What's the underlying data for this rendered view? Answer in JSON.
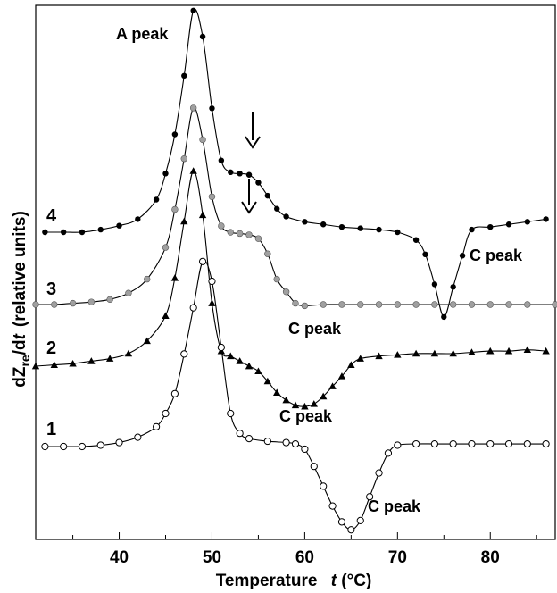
{
  "chart_data": {
    "type": "line",
    "title": "",
    "xlabel": "Temperature",
    "xlabel_var": "t",
    "xlabel_unit": "(°C)",
    "ylabel": "dZ",
    "ylabel_sub": "re",
    "ylabel_mid": "/d",
    "ylabel_var": "t",
    "ylabel_units": "(relative units)",
    "xlim": [
      31,
      87
    ],
    "x_ticks": [
      40,
      50,
      60,
      70,
      80
    ],
    "y_ticks_shown": false,
    "grid": false,
    "legend": "none",
    "series": [
      {
        "label": "4",
        "marker": "filled-circle",
        "color": "#000000",
        "x": [
          32,
          34,
          36,
          38,
          40,
          42,
          44,
          45,
          46,
          47,
          48,
          49,
          50,
          51,
          52,
          53,
          54,
          55,
          56,
          57,
          58,
          60,
          62,
          64,
          66,
          68,
          70,
          72,
          73,
          74,
          75,
          76,
          77,
          78,
          80,
          82,
          84,
          86
        ],
        "y": [
          0,
          0,
          0,
          0.2,
          0.5,
          1.0,
          2.5,
          4.5,
          7.5,
          12,
          17,
          15,
          9.5,
          5.5,
          4.6,
          4.5,
          4.4,
          3.8,
          2.8,
          1.8,
          1.2,
          0.8,
          0.6,
          0.4,
          0.3,
          0.2,
          0.0,
          -0.6,
          -1.7,
          -4.0,
          -6.5,
          -4.2,
          -1.8,
          0.2,
          0.4,
          0.6,
          0.8,
          1.0
        ]
      },
      {
        "label": "3",
        "marker": "gray-circle",
        "color": "#8c8c8c",
        "x": [
          31,
          33,
          35,
          37,
          39,
          41,
          43,
          45,
          46,
          47,
          48,
          49,
          50,
          51,
          52,
          53,
          54,
          55,
          56,
          57,
          58,
          59,
          60,
          62,
          64,
          66,
          68,
          70,
          72,
          74,
          76,
          78,
          80,
          82,
          84,
          87
        ],
        "y": [
          0,
          0,
          0.1,
          0.2,
          0.4,
          0.9,
          2.0,
          4.5,
          7.5,
          11.5,
          15.5,
          13,
          8.5,
          6.2,
          5.7,
          5.6,
          5.5,
          5.2,
          4.0,
          2.0,
          1.0,
          0.1,
          -0.1,
          0,
          0,
          0,
          0,
          0,
          0,
          0,
          0,
          0,
          0,
          0,
          0,
          0
        ]
      },
      {
        "label": "2",
        "marker": "filled-triangle",
        "color": "#000000",
        "x": [
          31,
          33,
          35,
          37,
          39,
          41,
          43,
          45,
          46,
          47,
          48,
          49,
          50,
          51,
          52,
          53,
          54,
          55,
          56,
          57,
          58,
          59,
          60,
          61,
          62,
          63,
          64,
          65,
          66,
          68,
          70,
          72,
          74,
          76,
          78,
          80,
          82,
          84,
          86
        ],
        "y": [
          0,
          0.1,
          0.2,
          0.4,
          0.6,
          1.0,
          2.0,
          4.0,
          7.0,
          11.5,
          15.5,
          12,
          5,
          1.2,
          0.8,
          0.4,
          0.0,
          -0.4,
          -1.2,
          -2.1,
          -2.7,
          -3.1,
          -3.2,
          -3.0,
          -2.4,
          -1.6,
          -0.8,
          0.1,
          0.6,
          0.8,
          0.9,
          1.0,
          1.0,
          1.0,
          1.1,
          1.2,
          1.2,
          1.3,
          1.2
        ]
      },
      {
        "label": "1",
        "marker": "open-circle",
        "color": "#000000",
        "x": [
          32,
          34,
          36,
          38,
          40,
          42,
          44,
          45,
          46,
          47,
          48,
          49,
          50,
          51,
          52,
          53,
          54,
          56,
          58,
          59,
          60,
          61,
          62,
          63,
          64,
          65,
          66,
          67,
          68,
          69,
          70,
          72,
          74,
          76,
          78,
          80,
          82,
          84,
          86
        ],
        "y": [
          0,
          0,
          0,
          0.1,
          0.3,
          0.7,
          1.5,
          2.5,
          4.0,
          7.0,
          10.5,
          14.0,
          12.5,
          7.5,
          2.5,
          1.0,
          0.6,
          0.4,
          0.3,
          0.2,
          -0.2,
          -1.5,
          -3.0,
          -4.5,
          -5.7,
          -6.3,
          -5.6,
          -3.8,
          -2.0,
          -0.5,
          0.1,
          0.2,
          0.2,
          0.2,
          0.2,
          0.2,
          0.2,
          0.2,
          0.2
        ]
      }
    ],
    "annotations": [
      {
        "text": "A peak"
      },
      {
        "text": "C peak"
      },
      {
        "text": "C peak"
      },
      {
        "text": "C peak"
      },
      {
        "text": "C peak"
      }
    ]
  }
}
